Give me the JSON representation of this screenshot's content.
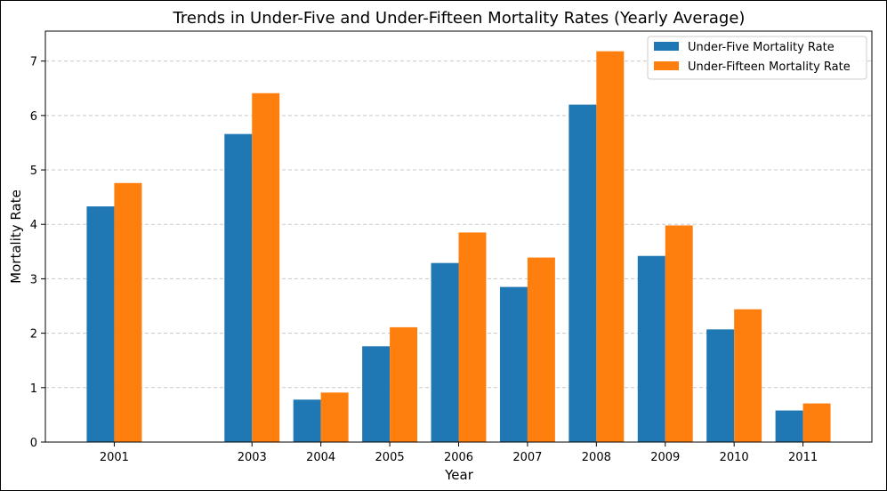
{
  "chart_data": {
    "type": "bar",
    "title": "Trends in Under-Five and Under-Fifteen Mortality Rates (Yearly Average)",
    "xlabel": "Year",
    "ylabel": "Mortality Rate",
    "x": [
      2001,
      2003,
      2004,
      2005,
      2006,
      2007,
      2008,
      2009,
      2010,
      2011
    ],
    "categories": [
      "2001",
      "2003",
      "2004",
      "2005",
      "2006",
      "2007",
      "2008",
      "2009",
      "2010",
      "2011"
    ],
    "yticks": [
      "0",
      "1",
      "2",
      "3",
      "4",
      "5",
      "6",
      "7"
    ],
    "ylim": [
      0,
      7.55
    ],
    "xlim": [
      2000.0,
      2012.0
    ],
    "grid": "horizontal dashed",
    "legend_position": "top-right",
    "series": [
      {
        "name": "Under-Five Mortality Rate",
        "color": "#1f77b4",
        "values": [
          4.33,
          5.66,
          0.78,
          1.76,
          3.29,
          2.85,
          6.2,
          3.42,
          2.07,
          0.58
        ]
      },
      {
        "name": "Under-Fifteen Mortality Rate",
        "color": "#ff7f0e",
        "values": [
          4.76,
          6.41,
          0.91,
          2.11,
          3.85,
          3.39,
          7.18,
          3.98,
          2.44,
          0.71
        ]
      }
    ]
  }
}
